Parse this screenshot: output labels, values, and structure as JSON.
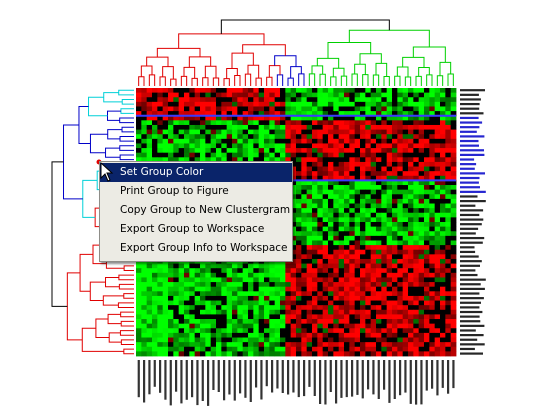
{
  "context_menu": {
    "items": [
      {
        "label": "Set Group Color",
        "active": true
      },
      {
        "label": "Print Group to Figure",
        "active": false
      },
      {
        "label": "Copy Group to New Clustergram",
        "active": false
      },
      {
        "label": "Export Group to Workspace",
        "active": false
      },
      {
        "label": "Export Group Info to Workspace",
        "active": false
      }
    ]
  },
  "colors": {
    "dendrogram_root": "#000000",
    "cluster_red": "#e00000",
    "cluster_blue": "#0000c8",
    "cluster_green": "#00d000",
    "cluster_cyan": "#00d0d8",
    "heatmap_high": "#ff0000",
    "heatmap_low": "#00ff00",
    "heatmap_zero": "#000000",
    "selection_line": "#3a3aff",
    "menu_bg": "#ecebe4",
    "menu_highlight": "#0a246a"
  },
  "icons": {
    "cursor": "arrow-cursor-icon"
  },
  "heatmap": {
    "rows": 58,
    "cols": 60,
    "selected_row_band": [
      6,
      20
    ]
  }
}
